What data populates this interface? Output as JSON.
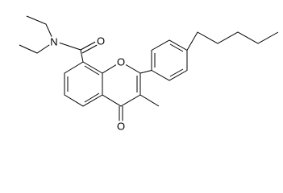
{
  "atoms": {
    "amide_n": "N",
    "amide_o": "O",
    "ring_o": "O",
    "ketone_o": "O"
  }
}
